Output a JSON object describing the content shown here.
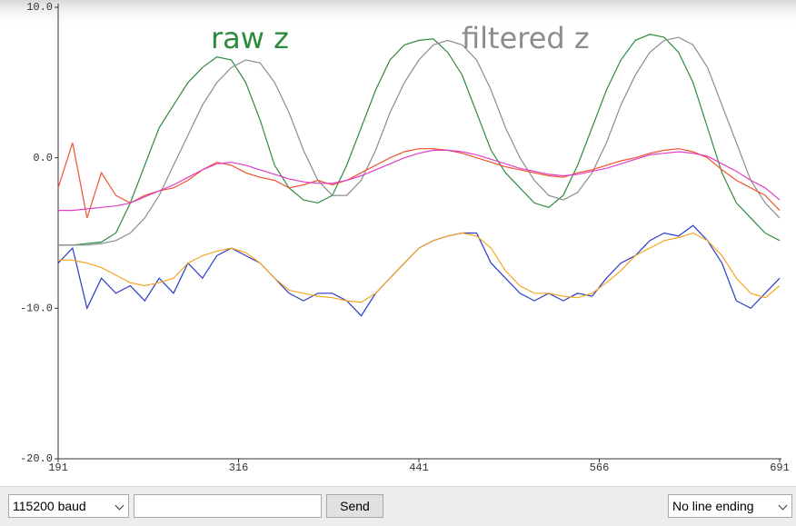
{
  "chart_data": {
    "type": "line",
    "x": [
      191,
      201,
      211,
      221,
      231,
      241,
      251,
      261,
      271,
      281,
      291,
      301,
      311,
      321,
      331,
      341,
      351,
      361,
      371,
      381,
      391,
      401,
      411,
      421,
      431,
      441,
      451,
      461,
      471,
      481,
      491,
      501,
      511,
      521,
      531,
      541,
      551,
      561,
      571,
      581,
      591,
      601,
      611,
      621,
      631,
      641,
      651,
      661,
      671,
      681,
      691
    ],
    "xlim": [
      191,
      691
    ],
    "xticks": [
      191,
      316,
      441,
      566,
      691
    ],
    "ylim": [
      -20,
      10
    ],
    "yticks": [
      {
        "value": 10,
        "label": "10.0"
      },
      {
        "value": 0,
        "label": "0.0"
      },
      {
        "value": -10,
        "label": "-10.0"
      },
      {
        "value": -20,
        "label": "-20.0"
      }
    ],
    "series": [
      {
        "name": "raw z",
        "color": "#2e8b3e",
        "values": [
          -5.8,
          -5.8,
          -5.7,
          -5.6,
          -5.0,
          -3.0,
          -0.5,
          2.0,
          3.5,
          5.0,
          6.0,
          6.7,
          6.5,
          5.0,
          2.5,
          -0.5,
          -2.0,
          -2.8,
          -3.0,
          -2.5,
          -0.5,
          2.0,
          4.5,
          6.5,
          7.5,
          7.8,
          7.9,
          7.0,
          5.5,
          3.0,
          0.5,
          -1.0,
          -2.0,
          -3.0,
          -3.3,
          -2.5,
          -0.5,
          2.0,
          4.5,
          6.5,
          7.8,
          8.2,
          8.0,
          7.0,
          5.0,
          2.0,
          -1.0,
          -3.0,
          -4.0,
          -5.0,
          -5.5
        ]
      },
      {
        "name": "filtered z",
        "color": "#8c8c8c",
        "values": [
          -5.8,
          -5.8,
          -5.8,
          -5.7,
          -5.5,
          -5.0,
          -4.0,
          -2.5,
          -0.5,
          1.5,
          3.5,
          5.0,
          6.0,
          6.5,
          6.3,
          5.0,
          3.0,
          0.5,
          -1.5,
          -2.5,
          -2.5,
          -1.5,
          0.5,
          3.0,
          5.0,
          6.5,
          7.5,
          7.8,
          7.5,
          6.5,
          4.5,
          2.0,
          0,
          -1.5,
          -2.5,
          -2.8,
          -2.3,
          -1.0,
          1.0,
          3.5,
          5.5,
          7.0,
          7.8,
          8.0,
          7.5,
          6.0,
          3.5,
          1.0,
          -1.5,
          -3.0,
          -4.0
        ]
      },
      {
        "color": "#f0522e",
        "values": [
          -2,
          1,
          -4,
          -1,
          -2.5,
          -3,
          -2.5,
          -2.2,
          -2,
          -1.5,
          -0.8,
          -0.3,
          -0.5,
          -1.0,
          -1.3,
          -1.5,
          -2.0,
          -1.8,
          -1.5,
          -1.8,
          -1.5,
          -1.0,
          -0.5,
          0,
          0.4,
          0.6,
          0.6,
          0.5,
          0.3,
          0,
          -0.3,
          -0.6,
          -0.8,
          -1.0,
          -1.2,
          -1.3,
          -1.0,
          -0.8,
          -0.5,
          -0.2,
          0,
          0.3,
          0.5,
          0.6,
          0.4,
          0,
          -0.8,
          -1.5,
          -2.0,
          -2.5,
          -3.5
        ]
      },
      {
        "color": "#e03cc8",
        "values": [
          -3.5,
          -3.5,
          -3.4,
          -3.3,
          -3.2,
          -3.0,
          -2.6,
          -2.2,
          -1.8,
          -1.3,
          -0.8,
          -0.4,
          -0.3,
          -0.5,
          -0.8,
          -1.1,
          -1.4,
          -1.6,
          -1.7,
          -1.7,
          -1.5,
          -1.2,
          -0.8,
          -0.4,
          0,
          0.3,
          0.5,
          0.5,
          0.4,
          0.2,
          -0.1,
          -0.4,
          -0.7,
          -0.9,
          -1.1,
          -1.2,
          -1.1,
          -0.9,
          -0.7,
          -0.4,
          -0.1,
          0.2,
          0.3,
          0.4,
          0.3,
          0.1,
          -0.4,
          -0.9,
          -1.5,
          -2.0,
          -2.8
        ]
      },
      {
        "color": "#2a3cc8",
        "values": [
          -7,
          -6,
          -10,
          -8,
          -9,
          -8.5,
          -9.5,
          -8,
          -9,
          -7,
          -8,
          -6.5,
          -6,
          -6.5,
          -7,
          -8,
          -9,
          -9.5,
          -9,
          -9,
          -9.5,
          -10.5,
          -9,
          -8,
          -7,
          -6,
          -5.5,
          -5.2,
          -5,
          -5,
          -7,
          -8,
          -9,
          -9.5,
          -9,
          -9.5,
          -9,
          -9.2,
          -8,
          -7,
          -6.5,
          -5.5,
          -5,
          -5.2,
          -4.5,
          -5.5,
          -7,
          -9.5,
          -10,
          -9,
          -8
        ]
      },
      {
        "color": "#f5a623",
        "values": [
          -6.8,
          -6.8,
          -7,
          -7.3,
          -7.8,
          -8.3,
          -8.5,
          -8.3,
          -8,
          -7,
          -6.5,
          -6.2,
          -6,
          -6.3,
          -7,
          -8,
          -8.8,
          -9,
          -9.2,
          -9.3,
          -9.5,
          -9.6,
          -9,
          -8,
          -7,
          -6,
          -5.5,
          -5.2,
          -5,
          -5.2,
          -6,
          -7.5,
          -8.5,
          -9,
          -9,
          -9.2,
          -9.3,
          -9,
          -8.3,
          -7.5,
          -6.5,
          -6,
          -5.5,
          -5.3,
          -5,
          -5.5,
          -6.5,
          -8,
          -9,
          -9.3,
          -8.5
        ]
      }
    ]
  },
  "controls": {
    "baud": "115200 baud",
    "send": "Send",
    "line_ending": "No line ending"
  }
}
